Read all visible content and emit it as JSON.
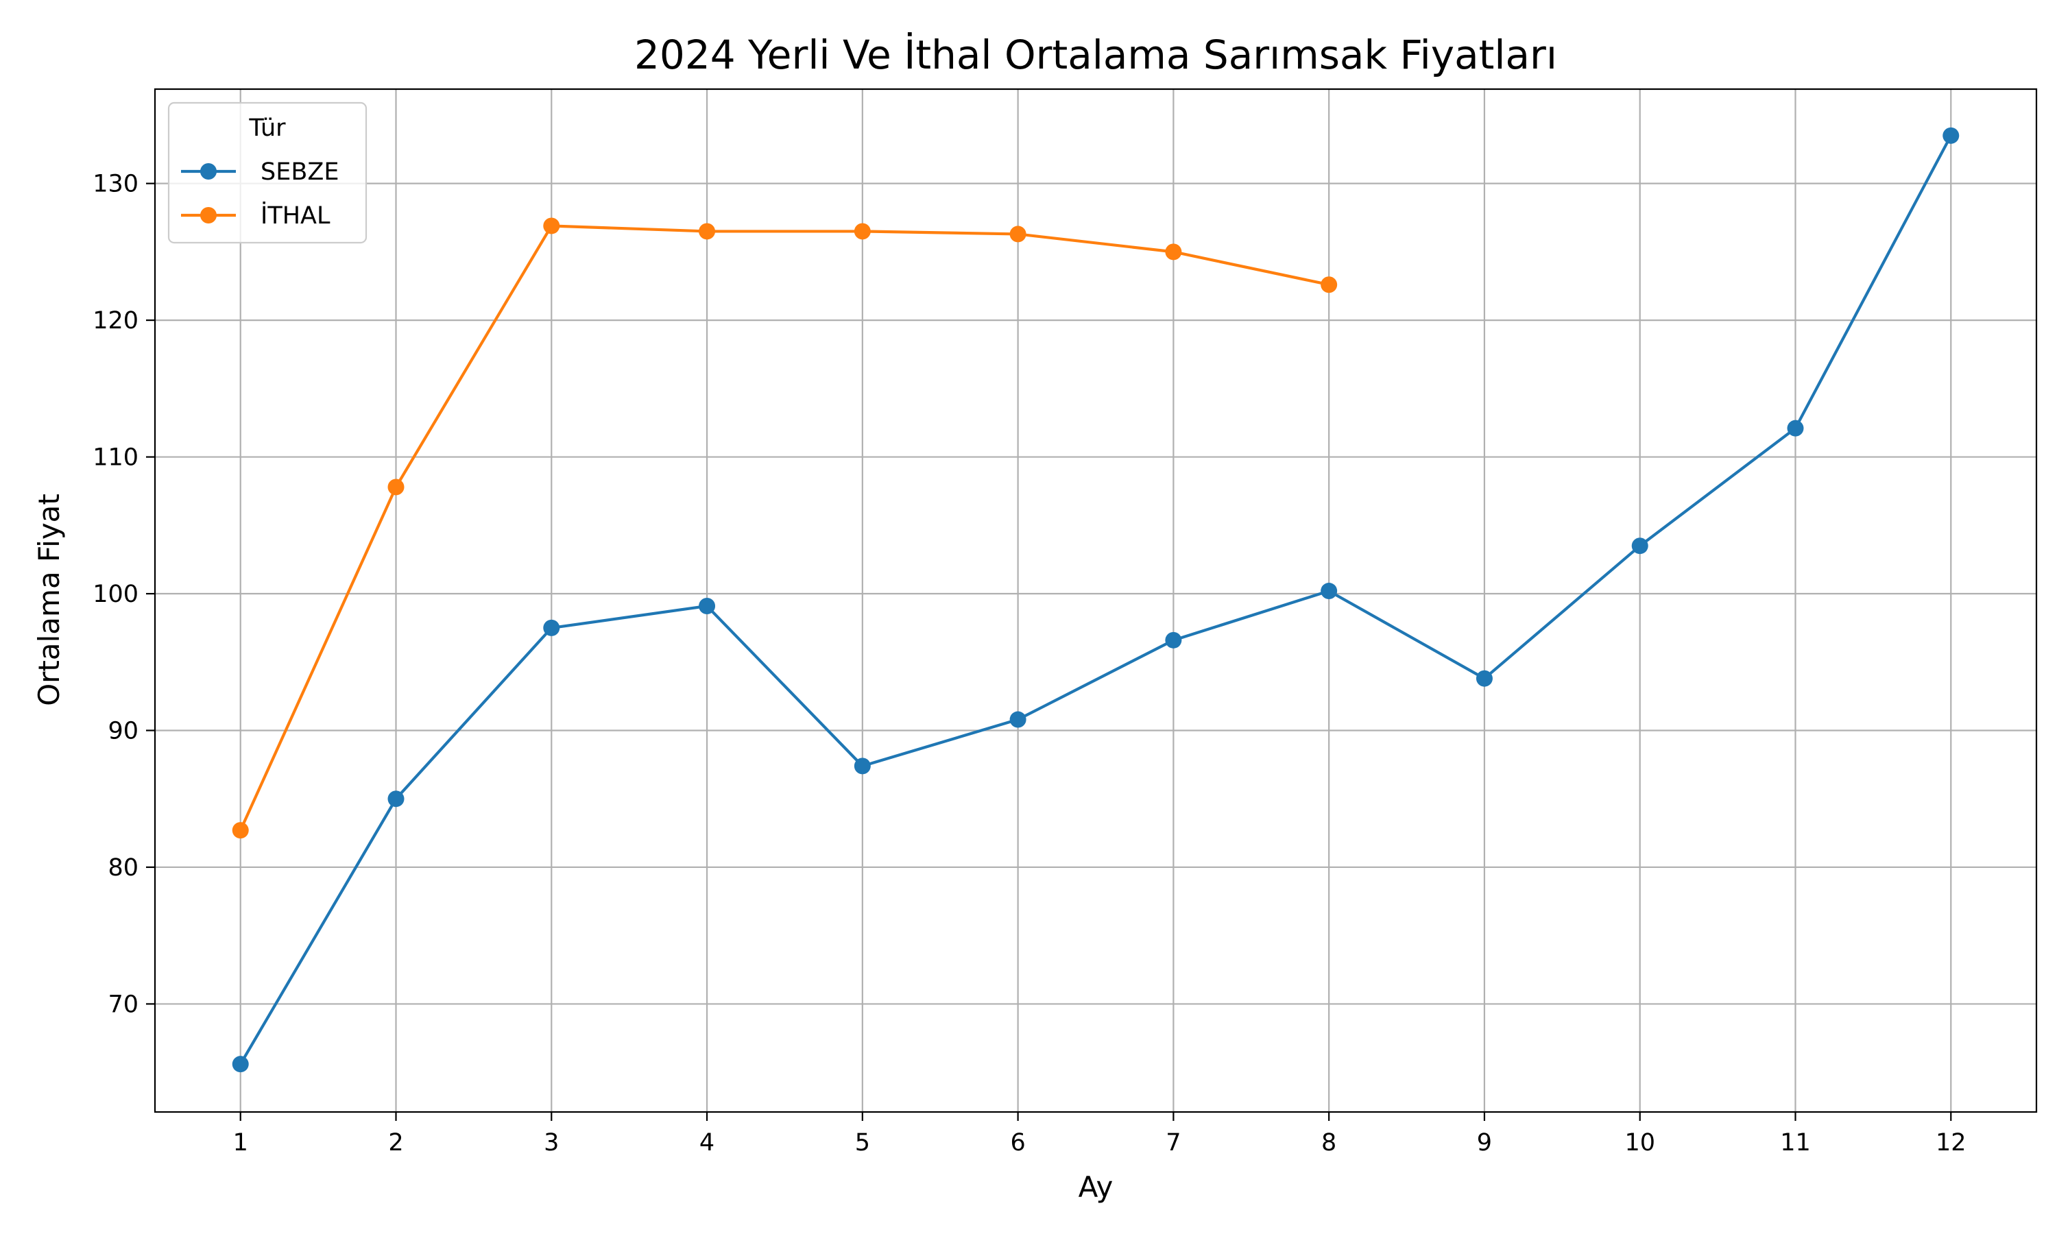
{
  "chart_data": {
    "type": "line",
    "title": "2024 Yerli Ve İthal Ortalama Sarımsak Fiyatları",
    "xlabel": "Ay",
    "ylabel": "Ortalama Fiyat",
    "x": [
      1,
      2,
      3,
      4,
      5,
      6,
      7,
      8,
      9,
      10,
      11,
      12
    ],
    "xlim": [
      0.45,
      12.55
    ],
    "ylim": [
      62.1,
      136.9
    ],
    "yticks": [
      70,
      80,
      90,
      100,
      110,
      120,
      130
    ],
    "grid": true,
    "legend": {
      "title": "Tür",
      "placement": "top-left"
    },
    "series": [
      {
        "name": "SEBZE",
        "color": "#1f77b4",
        "marker": "circle",
        "values": [
          65.6,
          85.0,
          97.5,
          99.1,
          87.4,
          90.8,
          96.6,
          100.2,
          93.8,
          103.5,
          112.1,
          133.5
        ]
      },
      {
        "name": "İTHAL",
        "color": "#ff7f0e",
        "marker": "circle",
        "values": [
          82.7,
          107.8,
          126.9,
          126.5,
          126.5,
          126.3,
          125.0,
          122.6,
          null,
          null,
          null,
          null
        ]
      }
    ]
  }
}
